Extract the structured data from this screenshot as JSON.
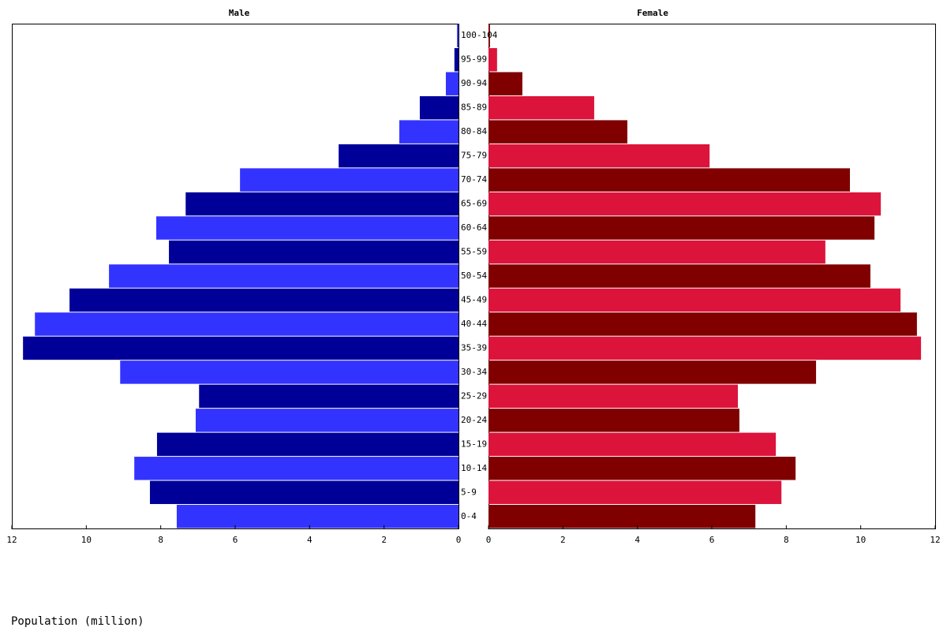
{
  "chart_data": {
    "type": "pyramid",
    "categories": [
      "0-4",
      "5-9",
      "10-14",
      "15-19",
      "20-24",
      "25-29",
      "30-34",
      "35-39",
      "40-44",
      "45-49",
      "50-54",
      "55-59",
      "60-64",
      "65-69",
      "70-74",
      "75-79",
      "80-84",
      "85-89",
      "90-94",
      "95-99",
      "100-104"
    ],
    "series": [
      {
        "name": "Male",
        "colors": [
          "#3333ff",
          "#000099"
        ],
        "values": [
          7.57,
          8.29,
          8.71,
          8.1,
          7.06,
          6.97,
          9.09,
          11.7,
          11.38,
          10.45,
          9.39,
          7.78,
          8.12,
          7.33,
          5.87,
          3.22,
          1.59,
          1.04,
          0.34,
          0.11,
          0.04
        ]
      },
      {
        "name": "Female",
        "colors": [
          "#800000",
          "#dc143c"
        ],
        "values": [
          7.17,
          7.87,
          8.25,
          7.72,
          6.74,
          6.7,
          8.8,
          11.62,
          11.51,
          11.07,
          10.26,
          9.05,
          10.37,
          10.54,
          9.71,
          5.94,
          3.73,
          2.84,
          0.91,
          0.23,
          0.04
        ]
      }
    ],
    "xlim": [
      0,
      12
    ],
    "xticks": [
      0,
      2,
      4,
      6,
      8,
      10,
      12
    ],
    "xlabel": "Population (million)"
  }
}
